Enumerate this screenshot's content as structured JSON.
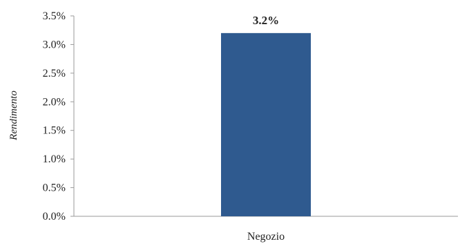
{
  "chart_data": {
    "type": "bar",
    "categories": [
      "Negozio"
    ],
    "values": [
      3.2
    ],
    "value_labels": [
      "3.2%"
    ],
    "title": "",
    "xlabel": "",
    "ylabel": "Rendimento",
    "ylim": [
      0,
      3.5
    ],
    "y_ticks": [
      "0.0%",
      "0.5%",
      "1.0%",
      "1.5%",
      "2.0%",
      "2.5%",
      "3.0%",
      "3.5%"
    ],
    "y_tick_values": [
      0,
      0.5,
      1.0,
      1.5,
      2.0,
      2.5,
      3.0,
      3.5
    ],
    "grid": false,
    "legend": "none",
    "colors": {
      "bar": "#2f5a8f"
    }
  }
}
